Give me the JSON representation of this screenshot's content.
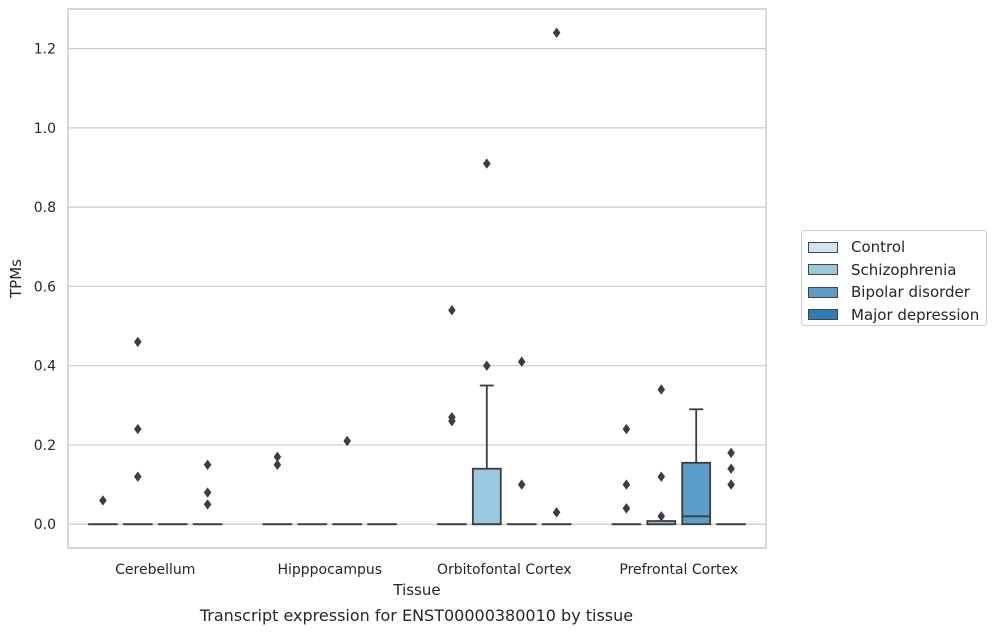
{
  "chart_data": {
    "type": "box",
    "xlabel": "Tissue",
    "ylabel": "TPMs",
    "caption": "Transcript expression for ENST00000380010 by tissue",
    "ylim": [
      -0.06,
      1.3
    ],
    "yticks": [
      0.0,
      0.2,
      0.4,
      0.6,
      0.8,
      1.0,
      1.2
    ],
    "ytick_labels": [
      "0.0",
      "0.2",
      "0.4",
      "0.6",
      "0.8",
      "1.0",
      "1.2"
    ],
    "grid": "horizontal",
    "legend_position": "right",
    "categories": [
      "Cerebellum",
      "Hipppocampus",
      "Orbitofontal Cortex",
      "Prefrontal Cortex"
    ],
    "series": [
      {
        "name": "Control",
        "color": "#d2e3f3",
        "boxes": [
          {
            "q1": 0.0,
            "median": 0.0,
            "q3": 0.0,
            "whislo": 0.0,
            "whishi": 0.0,
            "fliers": [
              0.06
            ]
          },
          {
            "q1": 0.0,
            "median": 0.0,
            "q3": 0.0,
            "whislo": 0.0,
            "whishi": 0.0,
            "fliers": [
              0.15,
              0.17
            ]
          },
          {
            "q1": 0.0,
            "median": 0.0,
            "q3": 0.0,
            "whislo": 0.0,
            "whishi": 0.0,
            "fliers": [
              0.26,
              0.27,
              0.54
            ]
          },
          {
            "q1": 0.0,
            "median": 0.0,
            "q3": 0.0,
            "whislo": 0.0,
            "whishi": 0.0,
            "fliers": [
              0.04,
              0.1,
              0.24
            ]
          }
        ]
      },
      {
        "name": "Schizophrenia",
        "color": "#9ac8e0",
        "boxes": [
          {
            "q1": 0.0,
            "median": 0.0,
            "q3": 0.0,
            "whislo": 0.0,
            "whishi": 0.0,
            "fliers": [
              0.12,
              0.24,
              0.46
            ]
          },
          {
            "q1": 0.0,
            "median": 0.0,
            "q3": 0.0,
            "whislo": 0.0,
            "whishi": 0.0,
            "fliers": []
          },
          {
            "q1": 0.0,
            "median": 0.0,
            "q3": 0.14,
            "whislo": 0.0,
            "whishi": 0.35,
            "fliers": [
              0.4,
              0.91
            ]
          },
          {
            "q1": 0.0,
            "median": 0.0,
            "q3": 0.008,
            "whislo": 0.0,
            "whishi": 0.008,
            "fliers": [
              0.02,
              0.12,
              0.34
            ]
          }
        ]
      },
      {
        "name": "Bipolar disorder",
        "color": "#5a9ec9",
        "boxes": [
          {
            "q1": 0.0,
            "median": 0.0,
            "q3": 0.0,
            "whislo": 0.0,
            "whishi": 0.0,
            "fliers": []
          },
          {
            "q1": 0.0,
            "median": 0.0,
            "q3": 0.0,
            "whislo": 0.0,
            "whishi": 0.0,
            "fliers": [
              0.21
            ]
          },
          {
            "q1": 0.0,
            "median": 0.0,
            "q3": 0.0,
            "whislo": 0.0,
            "whishi": 0.0,
            "fliers": [
              0.1,
              0.41
            ]
          },
          {
            "q1": 0.0,
            "median": 0.02,
            "q3": 0.155,
            "whislo": 0.0,
            "whishi": 0.29,
            "fliers": []
          }
        ]
      },
      {
        "name": "Major depression",
        "color": "#2d7dbb",
        "boxes": [
          {
            "q1": 0.0,
            "median": 0.0,
            "q3": 0.0,
            "whislo": 0.0,
            "whishi": 0.0,
            "fliers": [
              0.05,
              0.08,
              0.15
            ]
          },
          {
            "q1": 0.0,
            "median": 0.0,
            "q3": 0.0,
            "whislo": 0.0,
            "whishi": 0.0,
            "fliers": []
          },
          {
            "q1": 0.0,
            "median": 0.0,
            "q3": 0.0,
            "whislo": 0.0,
            "whishi": 0.0,
            "fliers": [
              0.03,
              1.24
            ]
          },
          {
            "q1": 0.0,
            "median": 0.0,
            "q3": 0.0,
            "whislo": 0.0,
            "whishi": 0.0,
            "fliers": [
              0.1,
              0.14,
              0.18
            ]
          }
        ]
      }
    ]
  }
}
